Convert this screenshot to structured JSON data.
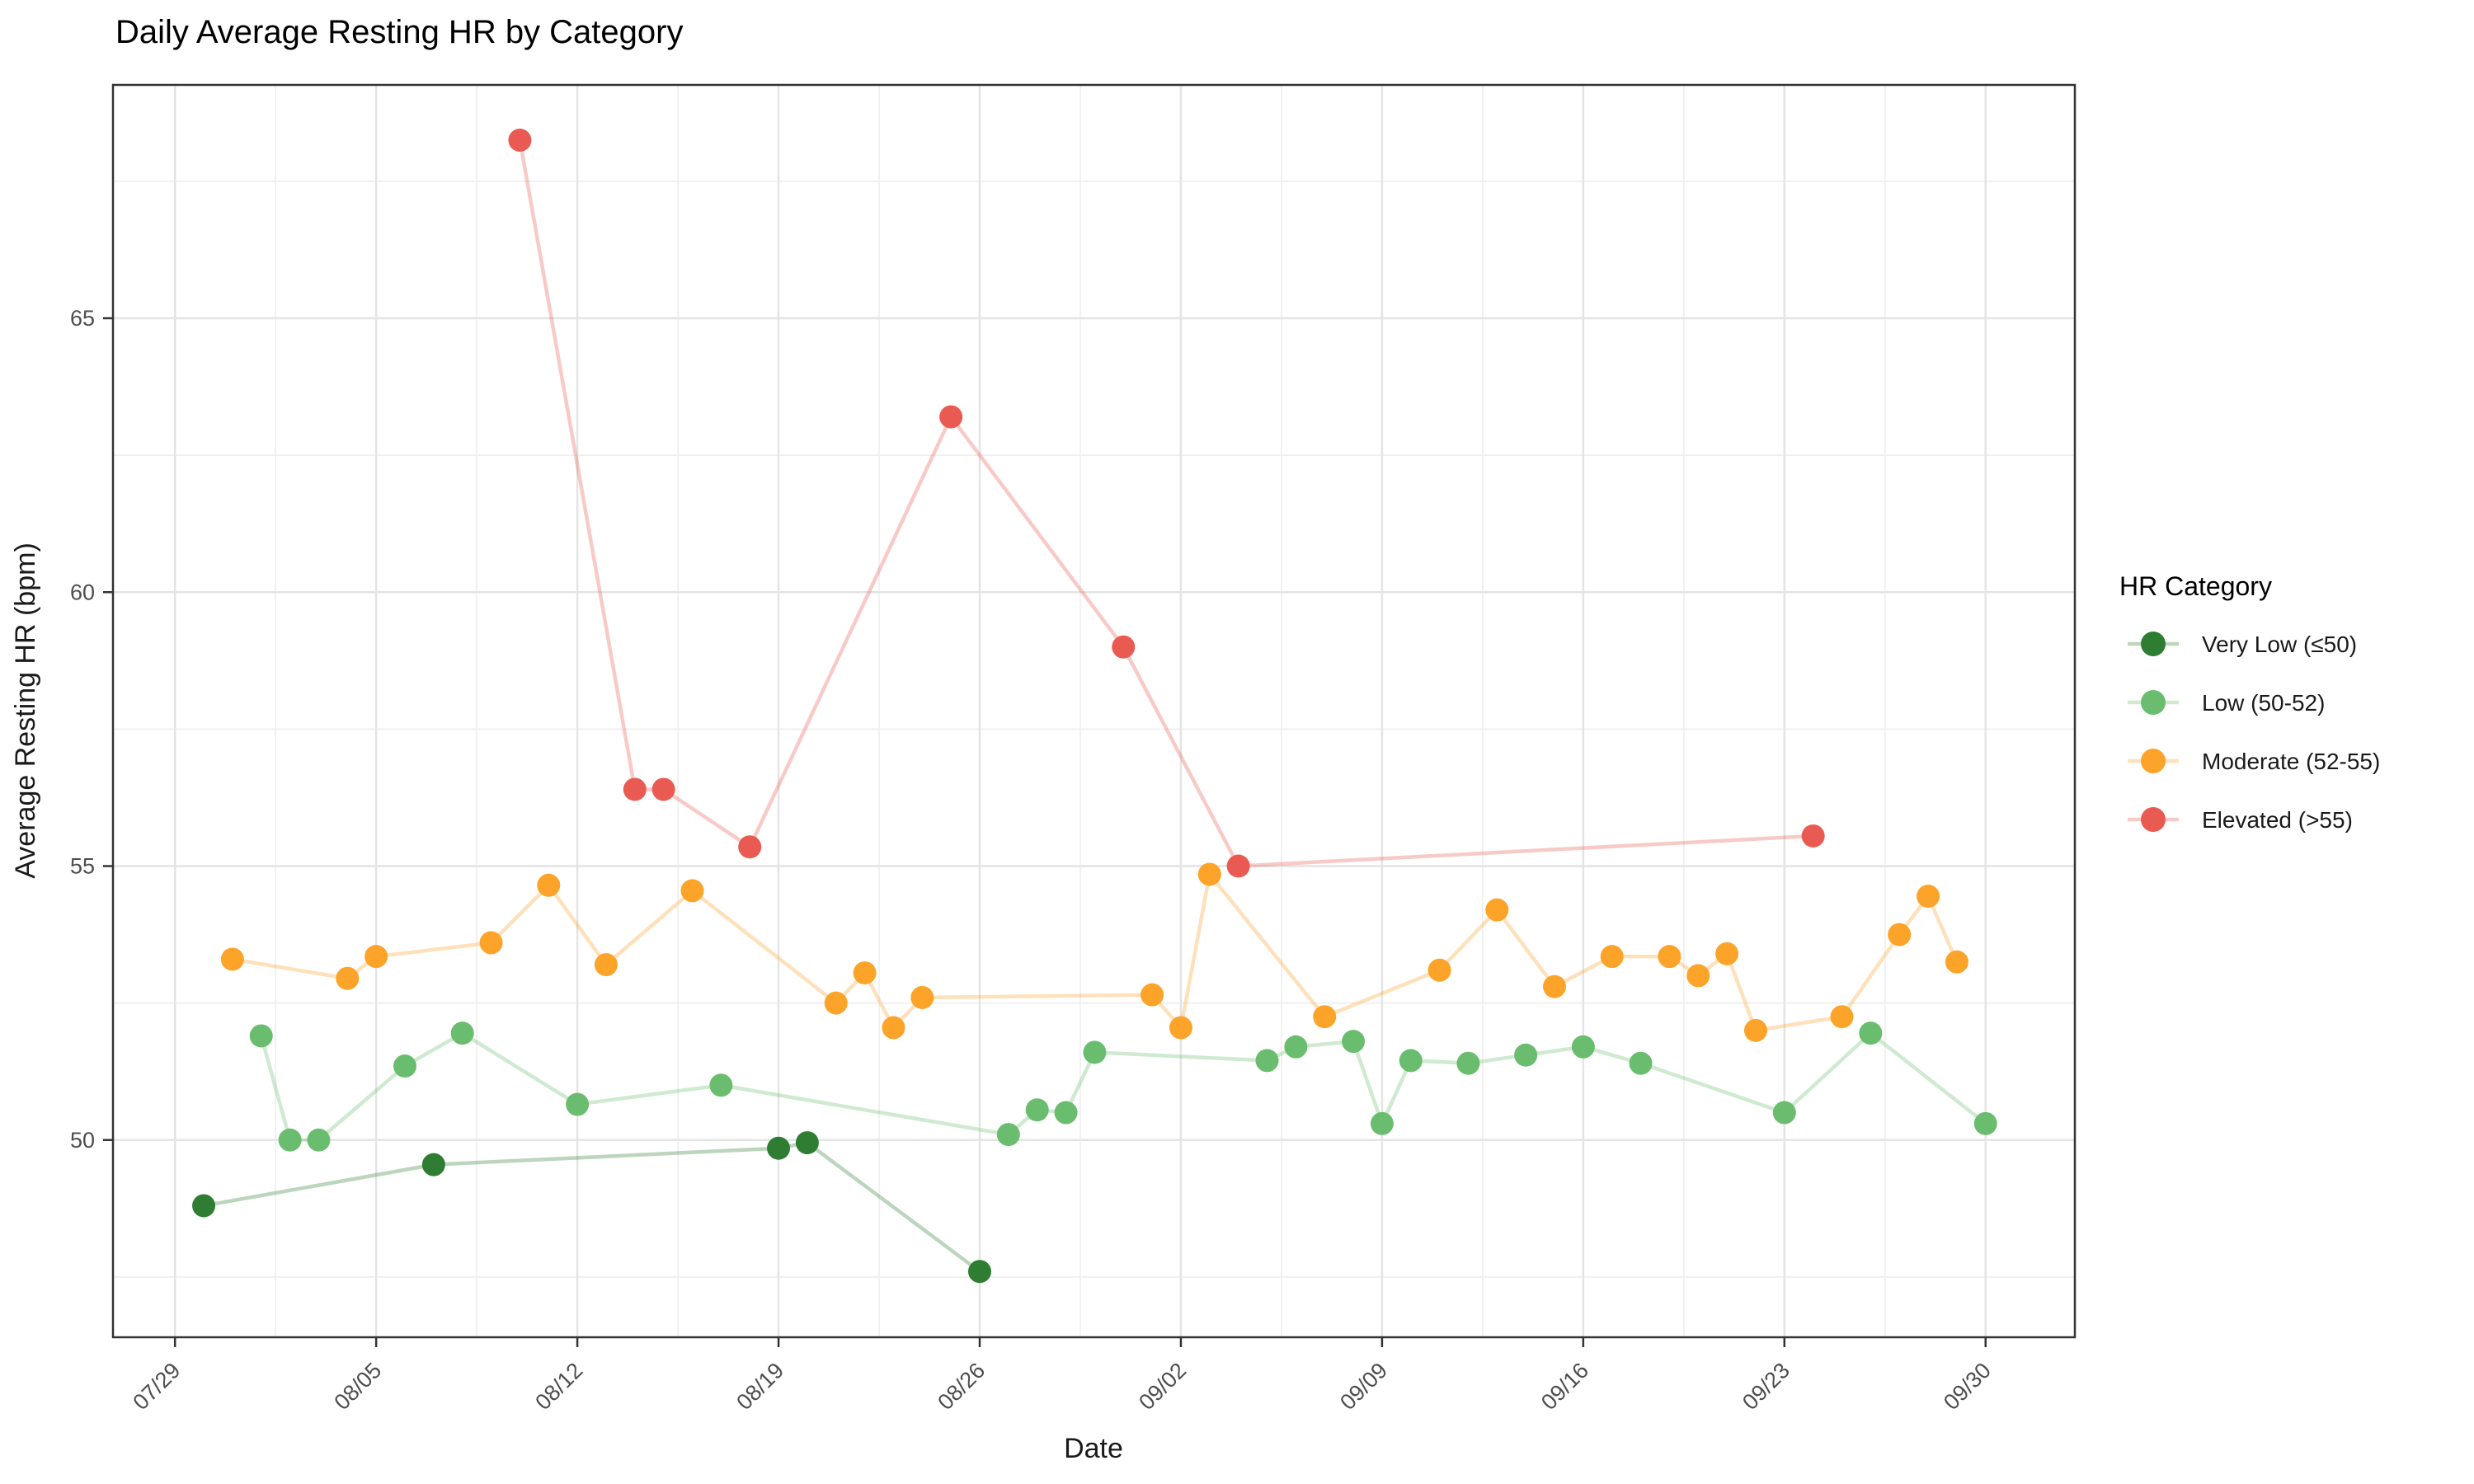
{
  "chart_data": {
    "type": "line",
    "title": "Daily Average Resting HR by Category",
    "xlabel": "Date",
    "ylabel": "Average Resting HR (bpm)",
    "legend_title": "HR Category",
    "grid": "on",
    "legend_position": "right",
    "x_tick_labels": [
      "07/29",
      "08/05",
      "08/12",
      "08/19",
      "08/26",
      "09/02",
      "09/09",
      "09/16",
      "09/23",
      "09/30"
    ],
    "y_ticks": [
      50,
      55,
      60,
      65
    ],
    "y_minor_ticks": [
      47.5,
      52.5,
      57.5,
      62.5,
      67.5
    ],
    "ylim": [
      46.4,
      69.3
    ],
    "xlim_days": [
      0,
      63
    ],
    "colors": {
      "very_low": "#2E7D32",
      "low": "#6ABD6E",
      "moderate": "#FCA32A",
      "elevated": "#E95B52",
      "grid_major": "#E4E4E4",
      "grid_minor": "#EFEFEF",
      "panel_border": "#333333",
      "background": "#FFFFFF"
    },
    "series": [
      {
        "name": "Very Low (≤50)",
        "key": "very_low",
        "color": "#2E7D32",
        "points": [
          {
            "date": "07/30",
            "value": 48.8
          },
          {
            "date": "08/07",
            "value": 49.55
          },
          {
            "date": "08/19",
            "value": 49.85
          },
          {
            "date": "08/20",
            "value": 49.95
          },
          {
            "date": "08/26",
            "value": 47.6
          }
        ]
      },
      {
        "name": "Low (50-52)",
        "key": "low",
        "color": "#6ABD6E",
        "points": [
          {
            "date": "08/01",
            "value": 51.9
          },
          {
            "date": "08/02",
            "value": 50.0
          },
          {
            "date": "08/03",
            "value": 50.0
          },
          {
            "date": "08/06",
            "value": 51.35
          },
          {
            "date": "08/08",
            "value": 51.95
          },
          {
            "date": "08/12",
            "value": 50.65
          },
          {
            "date": "08/17",
            "value": 51.0
          },
          {
            "date": "08/27",
            "value": 50.1
          },
          {
            "date": "08/28",
            "value": 50.55
          },
          {
            "date": "08/29",
            "value": 50.5
          },
          {
            "date": "08/30",
            "value": 51.6
          },
          {
            "date": "09/05",
            "value": 51.45
          },
          {
            "date": "09/06",
            "value": 51.7
          },
          {
            "date": "09/08",
            "value": 51.8
          },
          {
            "date": "09/09",
            "value": 50.3
          },
          {
            "date": "09/10",
            "value": 51.45
          },
          {
            "date": "09/12",
            "value": 51.4
          },
          {
            "date": "09/14",
            "value": 51.55
          },
          {
            "date": "09/16",
            "value": 51.7
          },
          {
            "date": "09/18",
            "value": 51.4
          },
          {
            "date": "09/23",
            "value": 50.5
          },
          {
            "date": "09/26",
            "value": 51.95
          },
          {
            "date": "09/30",
            "value": 50.3
          }
        ]
      },
      {
        "name": "Moderate (52-55)",
        "key": "moderate",
        "color": "#FCA32A",
        "points": [
          {
            "date": "07/31",
            "value": 53.3
          },
          {
            "date": "08/04",
            "value": 52.95
          },
          {
            "date": "08/05",
            "value": 53.35
          },
          {
            "date": "08/09",
            "value": 53.6
          },
          {
            "date": "08/11",
            "value": 54.65
          },
          {
            "date": "08/13",
            "value": 53.2
          },
          {
            "date": "08/16",
            "value": 54.55
          },
          {
            "date": "08/21",
            "value": 52.5
          },
          {
            "date": "08/22",
            "value": 53.05
          },
          {
            "date": "08/23",
            "value": 52.05
          },
          {
            "date": "08/24",
            "value": 52.6
          },
          {
            "date": "09/01",
            "value": 52.65
          },
          {
            "date": "09/02",
            "value": 52.05
          },
          {
            "date": "09/03",
            "value": 54.85
          },
          {
            "date": "09/07",
            "value": 52.25
          },
          {
            "date": "09/11",
            "value": 53.1
          },
          {
            "date": "09/13",
            "value": 54.2
          },
          {
            "date": "09/15",
            "value": 52.8
          },
          {
            "date": "09/17",
            "value": 53.35
          },
          {
            "date": "09/19",
            "value": 53.35
          },
          {
            "date": "09/20",
            "value": 53.0
          },
          {
            "date": "09/21",
            "value": 53.4
          },
          {
            "date": "09/22",
            "value": 52.0
          },
          {
            "date": "09/25",
            "value": 52.25
          },
          {
            "date": "09/27",
            "value": 53.75
          },
          {
            "date": "09/28",
            "value": 54.45
          },
          {
            "date": "09/29",
            "value": 53.25
          }
        ]
      },
      {
        "name": "Elevated (>55)",
        "key": "elevated",
        "color": "#E95B52",
        "points": [
          {
            "date": "08/10",
            "value": 68.25
          },
          {
            "date": "08/14",
            "value": 56.4
          },
          {
            "date": "08/15",
            "value": 56.4
          },
          {
            "date": "08/18",
            "value": 55.35
          },
          {
            "date": "08/25",
            "value": 63.2
          },
          {
            "date": "08/31",
            "value": 59.0
          },
          {
            "date": "09/04",
            "value": 55.0
          },
          {
            "date": "09/24",
            "value": 55.55
          }
        ]
      }
    ]
  }
}
